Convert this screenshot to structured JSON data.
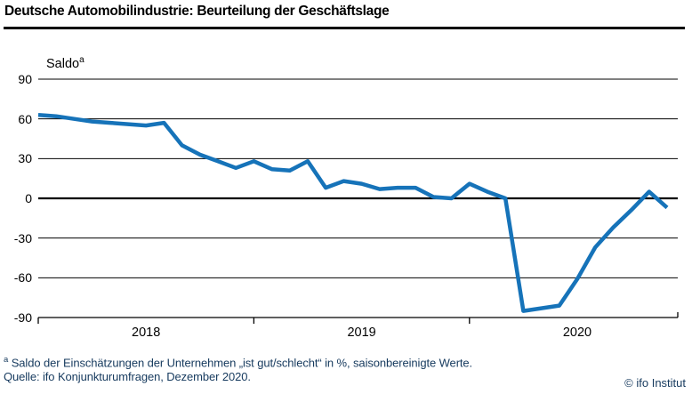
{
  "header": {
    "title": "Deutsche Automobilindustrie: Beurteilung der Geschäftslage"
  },
  "chart": {
    "y_axis_label": "Saldo",
    "y_axis_label_sup": "a",
    "y_tick_labels": [
      "90",
      "60",
      "30",
      "0",
      "-30",
      "-60",
      "-90"
    ],
    "x_tick_labels": [
      "2018",
      "2019",
      "2020"
    ]
  },
  "chart_data": {
    "type": "line",
    "title": "Deutsche Automobilindustrie: Beurteilung der Geschäftslage",
    "ylabel": "Saldo",
    "ylim": [
      -90,
      90
    ],
    "y_ticks": [
      90,
      60,
      30,
      0,
      -30,
      -60,
      -90
    ],
    "x_tick_years": [
      "2018",
      "2019",
      "2020"
    ],
    "grid": "horizontal",
    "legend": "none",
    "line_color": "#1673b9",
    "x": [
      "2018-01",
      "2018-02",
      "2018-03",
      "2018-04",
      "2018-05",
      "2018-06",
      "2018-07",
      "2018-08",
      "2018-09",
      "2018-10",
      "2018-11",
      "2018-12",
      "2019-01",
      "2019-02",
      "2019-03",
      "2019-04",
      "2019-05",
      "2019-06",
      "2019-07",
      "2019-08",
      "2019-09",
      "2019-10",
      "2019-11",
      "2019-12",
      "2020-01",
      "2020-02",
      "2020-03",
      "2020-04",
      "2020-05",
      "2020-06",
      "2020-07",
      "2020-08",
      "2020-09",
      "2020-10",
      "2020-11",
      "2020-12"
    ],
    "series": [
      {
        "name": "Beurteilung der Geschäftslage (Saldo, saisonbereinigt)",
        "values": [
          63,
          62,
          60,
          58,
          57,
          56,
          55,
          57,
          40,
          33,
          28,
          23,
          28,
          22,
          21,
          28,
          8,
          13,
          11,
          7,
          8,
          8,
          1,
          0,
          11,
          5,
          0,
          -85,
          -83,
          -81,
          -61,
          -37,
          -22,
          -9,
          5,
          -7
        ]
      }
    ]
  },
  "footnotes": {
    "marker": "a",
    "line1": "Saldo der Einschätzungen der Unternehmen „ist gut/schlecht“ in %, saisonbereinigte Werte.",
    "line2": "Quelle: ifo Konjunkturumfragen, Dezember 2020."
  },
  "copyright": "© ifo Institut"
}
